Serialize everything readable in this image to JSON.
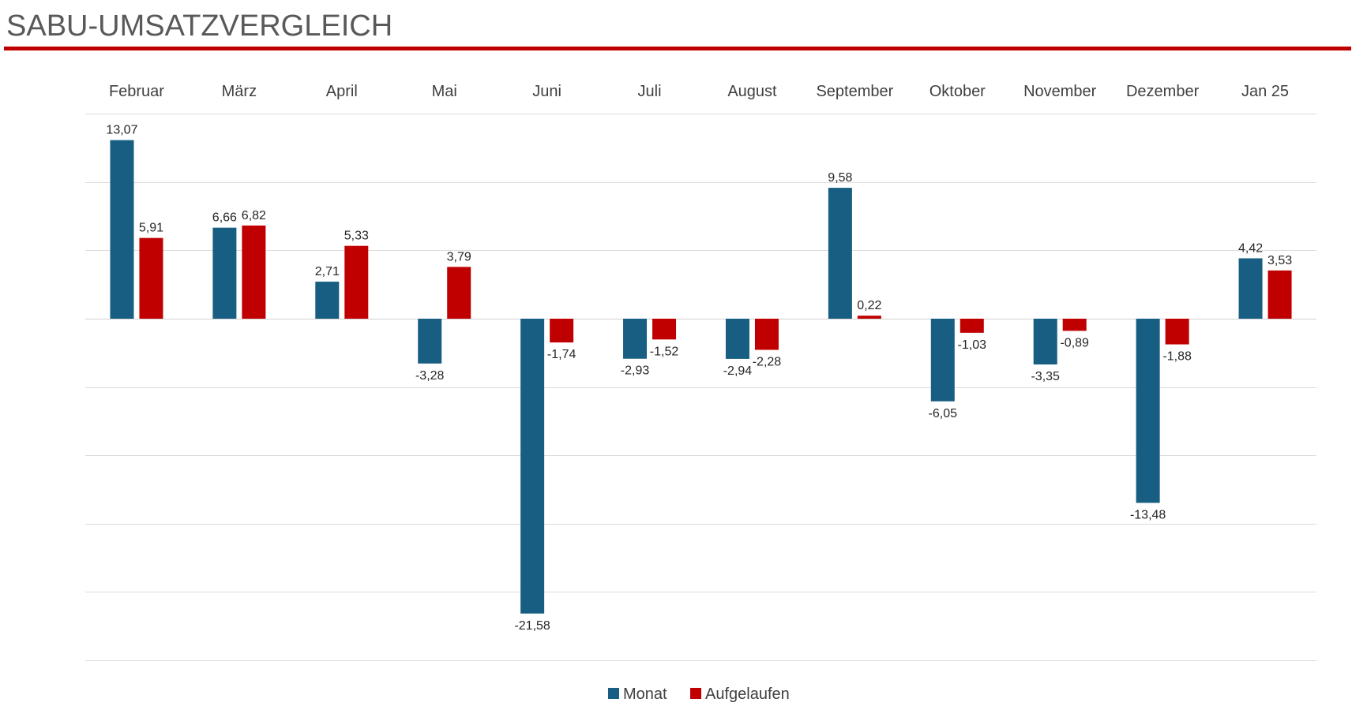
{
  "title": "SABU-UMSATZVERGLEICH",
  "colors": {
    "monat": "#175e82",
    "aufgelaufen": "#c00000",
    "rule": "#c00000"
  },
  "chart_data": {
    "type": "bar",
    "categories": [
      "Februar",
      "März",
      "April",
      "Mai",
      "Juni",
      "Juli",
      "August",
      "September",
      "Oktober",
      "November",
      "Dezember",
      "Jan 25"
    ],
    "series": [
      {
        "name": "Monat",
        "values": [
          13.07,
          6.66,
          2.71,
          -3.28,
          -21.58,
          -2.93,
          -2.94,
          9.58,
          -6.05,
          -3.35,
          -13.48,
          4.42
        ],
        "labels": [
          "13,07",
          "6,66",
          "2,71",
          "-3,28",
          "-21,58",
          "-2,93",
          "-2,94",
          "9,58",
          "-6,05",
          "-3,35",
          "-13,48",
          "4,42"
        ]
      },
      {
        "name": "Aufgelaufen",
        "values": [
          5.91,
          6.82,
          5.33,
          3.79,
          -1.74,
          -1.52,
          -2.28,
          0.22,
          -1.03,
          -0.89,
          -1.88,
          3.53
        ],
        "labels": [
          "5,91",
          "6,82",
          "5,33",
          "3,79",
          "-1,74",
          "-1,52",
          "-2,28",
          "0,22",
          "-1,03",
          "-0,89",
          "-1,88",
          "3,53"
        ]
      }
    ],
    "ylim": [
      -25,
      15
    ],
    "grid": true,
    "xaxis_position": "top",
    "legend": "bottom"
  }
}
